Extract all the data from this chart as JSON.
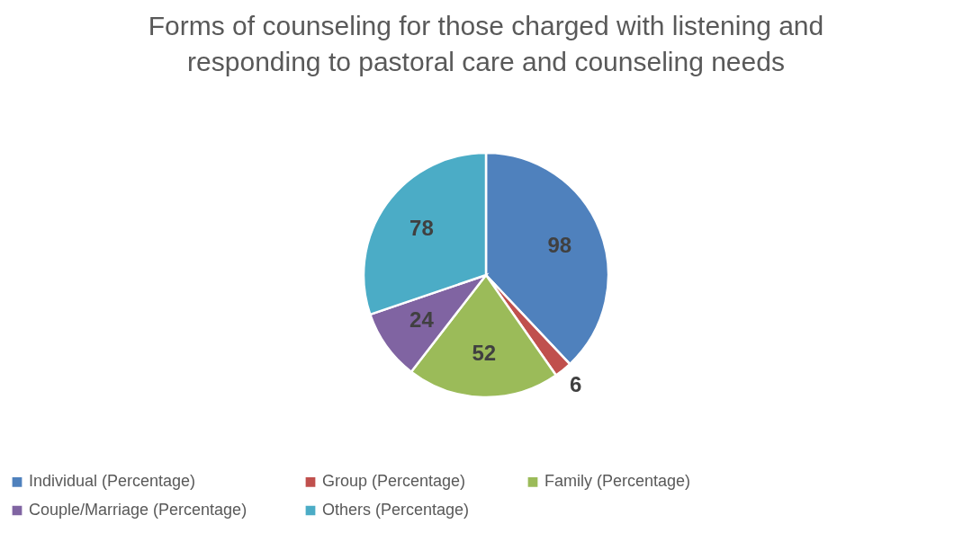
{
  "chart_data": {
    "type": "pie",
    "title": "Forms of counseling for those charged with listening and responding to pastoral care and counseling needs",
    "categories": [
      "Individual (Percentage)",
      "Group (Percentage)",
      "Family (Percentage)",
      "Couple/Marriage (Percentage)",
      "Others (Percentage)"
    ],
    "values": [
      98,
      6,
      52,
      24,
      78
    ],
    "colors": [
      "#4f81bd",
      "#c0504d",
      "#9bbb59",
      "#8064a2",
      "#4bacc6"
    ],
    "data_labels": true,
    "legend": "bottom"
  }
}
